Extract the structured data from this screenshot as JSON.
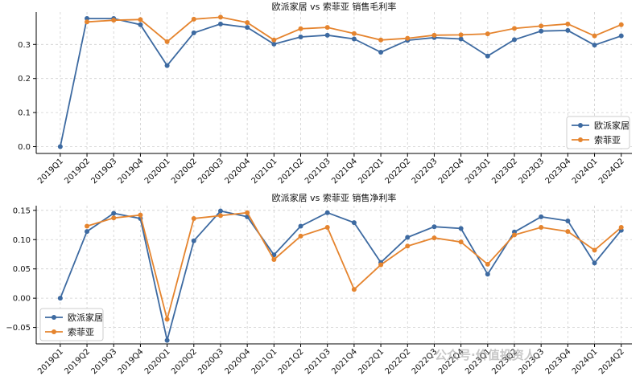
{
  "watermark": "公众号·价值投资人",
  "colors": {
    "oupai": "#3d6aa1",
    "sofia": "#e5842e"
  },
  "chart_data": [
    {
      "type": "line",
      "title": "欧派家居 vs 索菲亚 销售毛利率",
      "categories": [
        "2019Q1",
        "2019Q2",
        "2019Q3",
        "2019Q4",
        "2020Q1",
        "2020Q2",
        "2020Q3",
        "2020Q4",
        "2021Q1",
        "2021Q2",
        "2021Q3",
        "2021Q4",
        "2022Q1",
        "2022Q2",
        "2022Q3",
        "2022Q4",
        "2023Q1",
        "2023Q2",
        "2023Q3",
        "2023Q4",
        "2024Q1",
        "2024Q2"
      ],
      "series": [
        {
          "name": "欧派家居",
          "values": [
            0.0,
            0.376,
            0.376,
            0.358,
            0.238,
            0.334,
            0.36,
            0.35,
            0.301,
            0.322,
            0.327,
            0.316,
            0.277,
            0.312,
            0.32,
            0.316,
            0.266,
            0.314,
            0.339,
            0.341,
            0.298,
            0.325
          ]
        },
        {
          "name": "索菲亚",
          "values": [
            null,
            0.366,
            0.371,
            0.373,
            0.308,
            0.374,
            0.38,
            0.364,
            0.313,
            0.346,
            0.35,
            0.332,
            0.313,
            0.318,
            0.327,
            0.328,
            0.331,
            0.347,
            0.354,
            0.36,
            0.325,
            0.358
          ]
        }
      ],
      "yticks": [
        "0.0",
        "0.1",
        "0.2",
        "0.3"
      ],
      "ylim": [
        -0.02,
        0.395
      ],
      "grid": true,
      "legend_position": "bottom-right"
    },
    {
      "type": "line",
      "title": "欧派家居 vs 索菲亚 销售净利率",
      "categories": [
        "2019Q1",
        "2019Q2",
        "2019Q3",
        "2019Q4",
        "2020Q1",
        "2020Q2",
        "2020Q3",
        "2020Q4",
        "2021Q1",
        "2021Q2",
        "2021Q3",
        "2021Q4",
        "2022Q1",
        "2022Q2",
        "2022Q3",
        "2022Q4",
        "2023Q1",
        "2023Q2",
        "2023Q3",
        "2023Q4",
        "2024Q1",
        "2024Q2"
      ],
      "series": [
        {
          "name": "欧派家居",
          "values": [
            0.0,
            0.114,
            0.145,
            0.136,
            -0.072,
            0.098,
            0.149,
            0.139,
            0.074,
            0.123,
            0.146,
            0.129,
            0.061,
            0.104,
            0.122,
            0.119,
            0.041,
            0.113,
            0.139,
            0.132,
            0.06,
            0.116
          ]
        },
        {
          "name": "索菲亚",
          "values": [
            null,
            0.123,
            0.137,
            0.142,
            -0.036,
            0.136,
            0.141,
            0.146,
            0.066,
            0.106,
            0.121,
            0.015,
            0.057,
            0.089,
            0.103,
            0.096,
            0.058,
            0.108,
            0.121,
            0.114,
            0.082,
            0.121
          ]
        }
      ],
      "yticks": [
        "−0.05",
        "0.00",
        "0.05",
        "0.10",
        "0.15"
      ],
      "ylim": [
        -0.078,
        0.158
      ],
      "grid": true,
      "legend_position": "bottom-left"
    }
  ]
}
